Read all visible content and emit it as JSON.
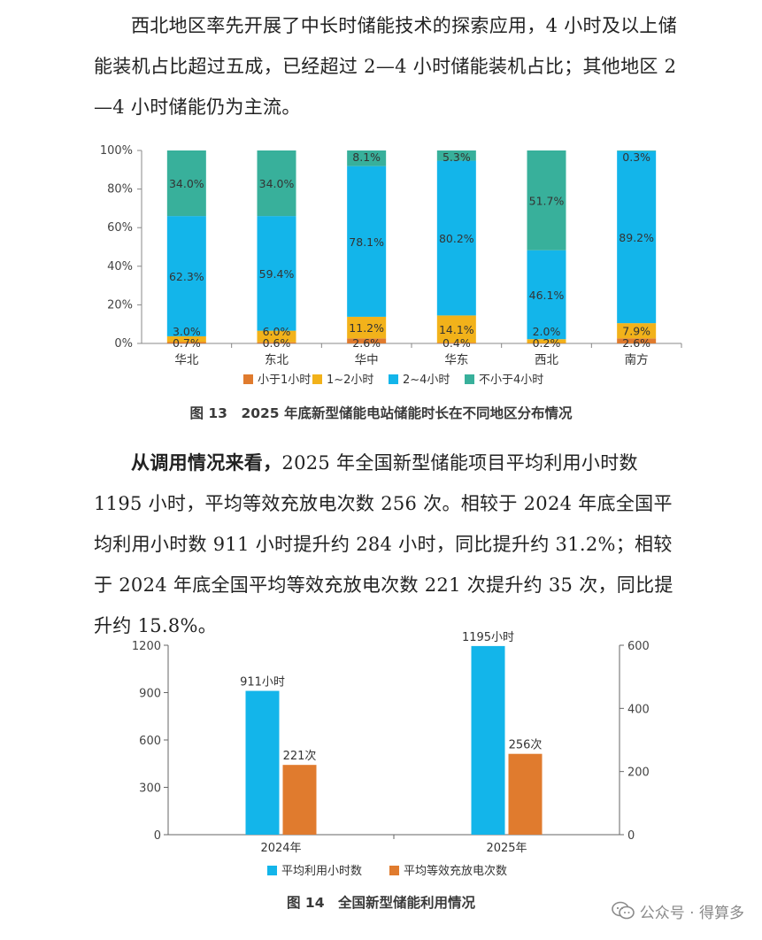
{
  "paragraph1": "西北地区率先开展了中长时储能技术的探索应用，4 小时及以上储能装机占比超过五成，已经超过 2—4 小时储能装机占比；其他地区 2—4 小时储能仍为主流。",
  "figure13": {
    "caption": "图 13　2025 年底新型储能电站储能时长在不同地区分布情况",
    "legend": [
      "小于1小时",
      "1~2小时",
      "2~4小时",
      "不小于4小时"
    ]
  },
  "paragraph2": {
    "lead": "从调用情况来看，",
    "body": "2025 年全国新型储能项目平均利用小时数 1195 小时，平均等效充放电次数 256 次。相较于 2024 年底全国平均利用小时数 911 小时提升约 284 小时，同比提升约 31.2%；相较于 2024 年底全国平均等效充放电次数 221 次提升约 35 次，同比提升约 15.8%。"
  },
  "figure14": {
    "caption": "图 14　全国新型储能利用情况",
    "legend": [
      "平均利用小时数",
      "平均等效充放电次数"
    ]
  },
  "watermark": "公众号 · 得算多",
  "colors": {
    "lt1": "#E07B2E",
    "h1to2": "#F2B21A",
    "h2to4": "#13B5EA",
    "ge4": "#38B09B"
  },
  "chart_data": [
    {
      "type": "bar",
      "stacked": true,
      "normalized": true,
      "categories": [
        "华北",
        "东北",
        "华中",
        "华东",
        "西北",
        "南方"
      ],
      "series": [
        {
          "name": "小于1小时",
          "values": [
            0.7,
            0.6,
            2.6,
            0.4,
            0.2,
            2.6
          ],
          "labels": [
            "0.7%",
            "0.6%",
            "2.6%",
            "0.4%",
            "0.2%",
            "2.6%"
          ]
        },
        {
          "name": "1~2小时",
          "values": [
            3.0,
            6.0,
            11.2,
            14.1,
            2.0,
            7.9
          ],
          "labels": [
            "3.0%",
            "6.0%",
            "11.2%",
            "14.1%",
            "2.0%",
            "7.9%"
          ]
        },
        {
          "name": "2~4小时",
          "values": [
            62.3,
            59.4,
            78.1,
            80.2,
            46.1,
            89.2
          ],
          "labels": [
            "62.3%",
            "59.4%",
            "78.1%",
            "80.2%",
            "46.1%",
            "89.2%"
          ]
        },
        {
          "name": "不小于4小时",
          "values": [
            34.0,
            34.0,
            8.1,
            5.3,
            51.7,
            0.3
          ],
          "labels": [
            "34.0%",
            "34.0%",
            "8.1%",
            "5.3%",
            "51.7%",
            "0.3%"
          ]
        }
      ],
      "ylim": [
        0,
        100
      ],
      "yticks": [
        "0%",
        "20%",
        "40%",
        "60%",
        "80%",
        "100%"
      ],
      "grid": false,
      "legend_position": "bottom"
    },
    {
      "type": "bar",
      "categories": [
        "2024年",
        "2025年"
      ],
      "series": [
        {
          "name": "平均利用小时数",
          "axis": "left",
          "values": [
            911,
            1195
          ],
          "labels": [
            "911小时",
            "1195小时"
          ]
        },
        {
          "name": "平均等效充放电次数",
          "axis": "right",
          "values": [
            221,
            256
          ],
          "labels": [
            "221次",
            "256次"
          ]
        }
      ],
      "ylim_left": [
        0,
        1200
      ],
      "yticks_left": [
        "0",
        "300",
        "600",
        "900",
        "1200"
      ],
      "ylim_right": [
        0,
        600
      ],
      "yticks_right": [
        "0",
        "200",
        "400",
        "600"
      ],
      "grid": false,
      "legend_position": "bottom"
    }
  ]
}
